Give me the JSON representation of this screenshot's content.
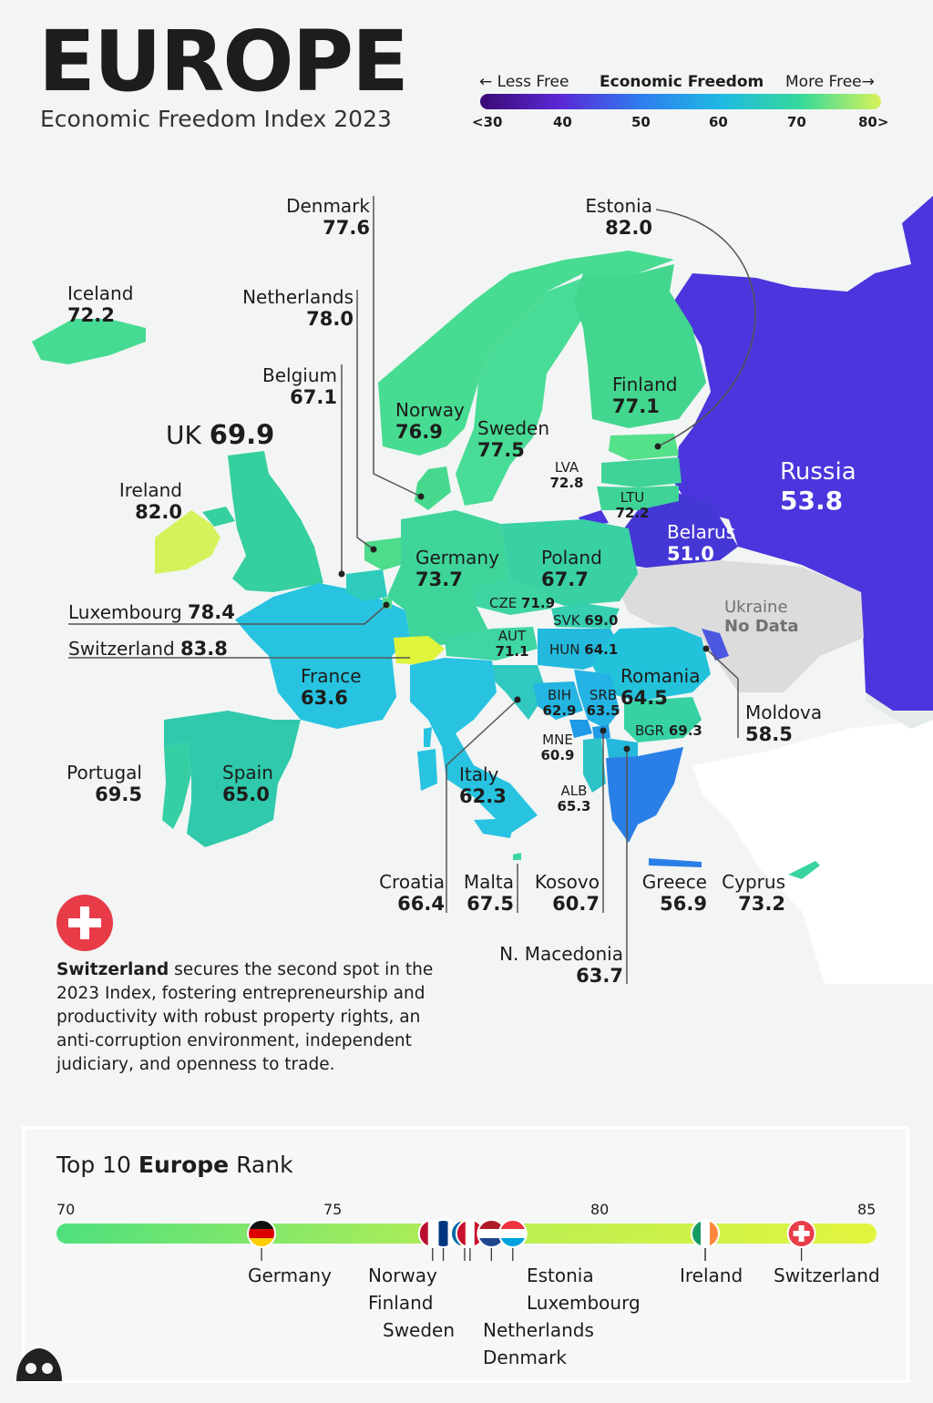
{
  "header": {
    "title": "EUROPE",
    "subtitle": "Economic Freedom Index 2023"
  },
  "legend": {
    "less_free": "← Less Free",
    "title": "Economic Freedom",
    "more_free": "More Free→",
    "ticks": [
      "<30",
      "40",
      "50",
      "60",
      "70",
      "80>"
    ],
    "colors": [
      "#3b0a73",
      "#5a28d6",
      "#2f7df0",
      "#1fb9e3",
      "#35d99a",
      "#d9f25a"
    ]
  },
  "countries": {
    "denmark": {
      "name": "Denmark",
      "value": "77.6"
    },
    "estonia": {
      "name": "Estonia",
      "value": "82.0"
    },
    "iceland": {
      "name": "Iceland",
      "value": "72.2"
    },
    "netherlands": {
      "name": "Netherlands",
      "value": "78.0"
    },
    "belgium": {
      "name": "Belgium",
      "value": "67.1"
    },
    "uk": {
      "name": "UK",
      "value": "69.9"
    },
    "ireland": {
      "name": "Ireland",
      "value": "82.0"
    },
    "norway": {
      "name": "Norway",
      "value": "76.9"
    },
    "sweden": {
      "name": "Sweden",
      "value": "77.5"
    },
    "finland": {
      "name": "Finland",
      "value": "77.1"
    },
    "russia": {
      "name": "Russia",
      "value": "53.8"
    },
    "latvia": {
      "name": "LVA",
      "value": "72.8"
    },
    "lithuania": {
      "name": "LTU",
      "value": "72.2"
    },
    "belarus": {
      "name": "Belarus",
      "value": "51.0"
    },
    "germany": {
      "name": "Germany",
      "value": "73.7"
    },
    "poland": {
      "name": "Poland",
      "value": "67.7"
    },
    "ukraine": {
      "name": "Ukraine",
      "value": "No Data"
    },
    "czechia": {
      "name": "CZE",
      "value": "71.9"
    },
    "slovakia": {
      "name": "SVK",
      "value": "69.0"
    },
    "luxembourg": {
      "name": "Luxembourg",
      "value": "78.4"
    },
    "austria": {
      "name": "AUT",
      "value": "71.1"
    },
    "hungary": {
      "name": "HUN",
      "value": "64.1"
    },
    "switzerland": {
      "name": "Switzerland",
      "value": "83.8"
    },
    "france": {
      "name": "France",
      "value": "63.6"
    },
    "romania": {
      "name": "Romania",
      "value": "64.5"
    },
    "bosnia": {
      "name": "BIH",
      "value": "62.9"
    },
    "serbia": {
      "name": "SRB",
      "value": "63.5"
    },
    "moldova": {
      "name": "Moldova",
      "value": "58.5"
    },
    "bulgaria": {
      "name": "BGR",
      "value": "69.3"
    },
    "montenegro": {
      "name": "MNE",
      "value": "60.9"
    },
    "portugal": {
      "name": "Portugal",
      "value": "69.5"
    },
    "spain": {
      "name": "Spain",
      "value": "65.0"
    },
    "italy": {
      "name": "Italy",
      "value": "62.3"
    },
    "albania": {
      "name": "ALB",
      "value": "65.3"
    },
    "croatia": {
      "name": "Croatia",
      "value": "66.4"
    },
    "malta": {
      "name": "Malta",
      "value": "67.5"
    },
    "kosovo": {
      "name": "Kosovo",
      "value": "60.7"
    },
    "greece": {
      "name": "Greece",
      "value": "56.9"
    },
    "cyprus": {
      "name": "Cyprus",
      "value": "73.2"
    },
    "north_macedonia": {
      "name": "N. Macedonia",
      "value": "63.7"
    }
  },
  "callout": {
    "country": "Switzerland",
    "text": "secures the second spot in the 2023 Index, fostering entrepreneurship and productivity with robust property rights, an anti-corruption environment, independent judiciary, and openness to trade."
  },
  "ranking": {
    "title_pre": "Top 10",
    "title_bold": "Europe",
    "title_post": "Rank",
    "axis_ticks": [
      "70",
      "75",
      "80",
      "85"
    ],
    "axis_range": [
      70,
      85
    ],
    "entries": [
      {
        "name": "Germany",
        "value": 73.7
      },
      {
        "name": "Norway",
        "value": 76.9
      },
      {
        "name": "Finland",
        "value": 77.1
      },
      {
        "name": "Sweden",
        "value": 77.5
      },
      {
        "name": "Denmark",
        "value": 77.6
      },
      {
        "name": "Netherlands",
        "value": 78.0
      },
      {
        "name": "Luxembourg",
        "value": 78.4
      },
      {
        "name": "Estonia",
        "value": 82.0
      },
      {
        "name": "Ireland",
        "value": 82.0
      },
      {
        "name": "Switzerland",
        "value": 83.8
      }
    ]
  }
}
